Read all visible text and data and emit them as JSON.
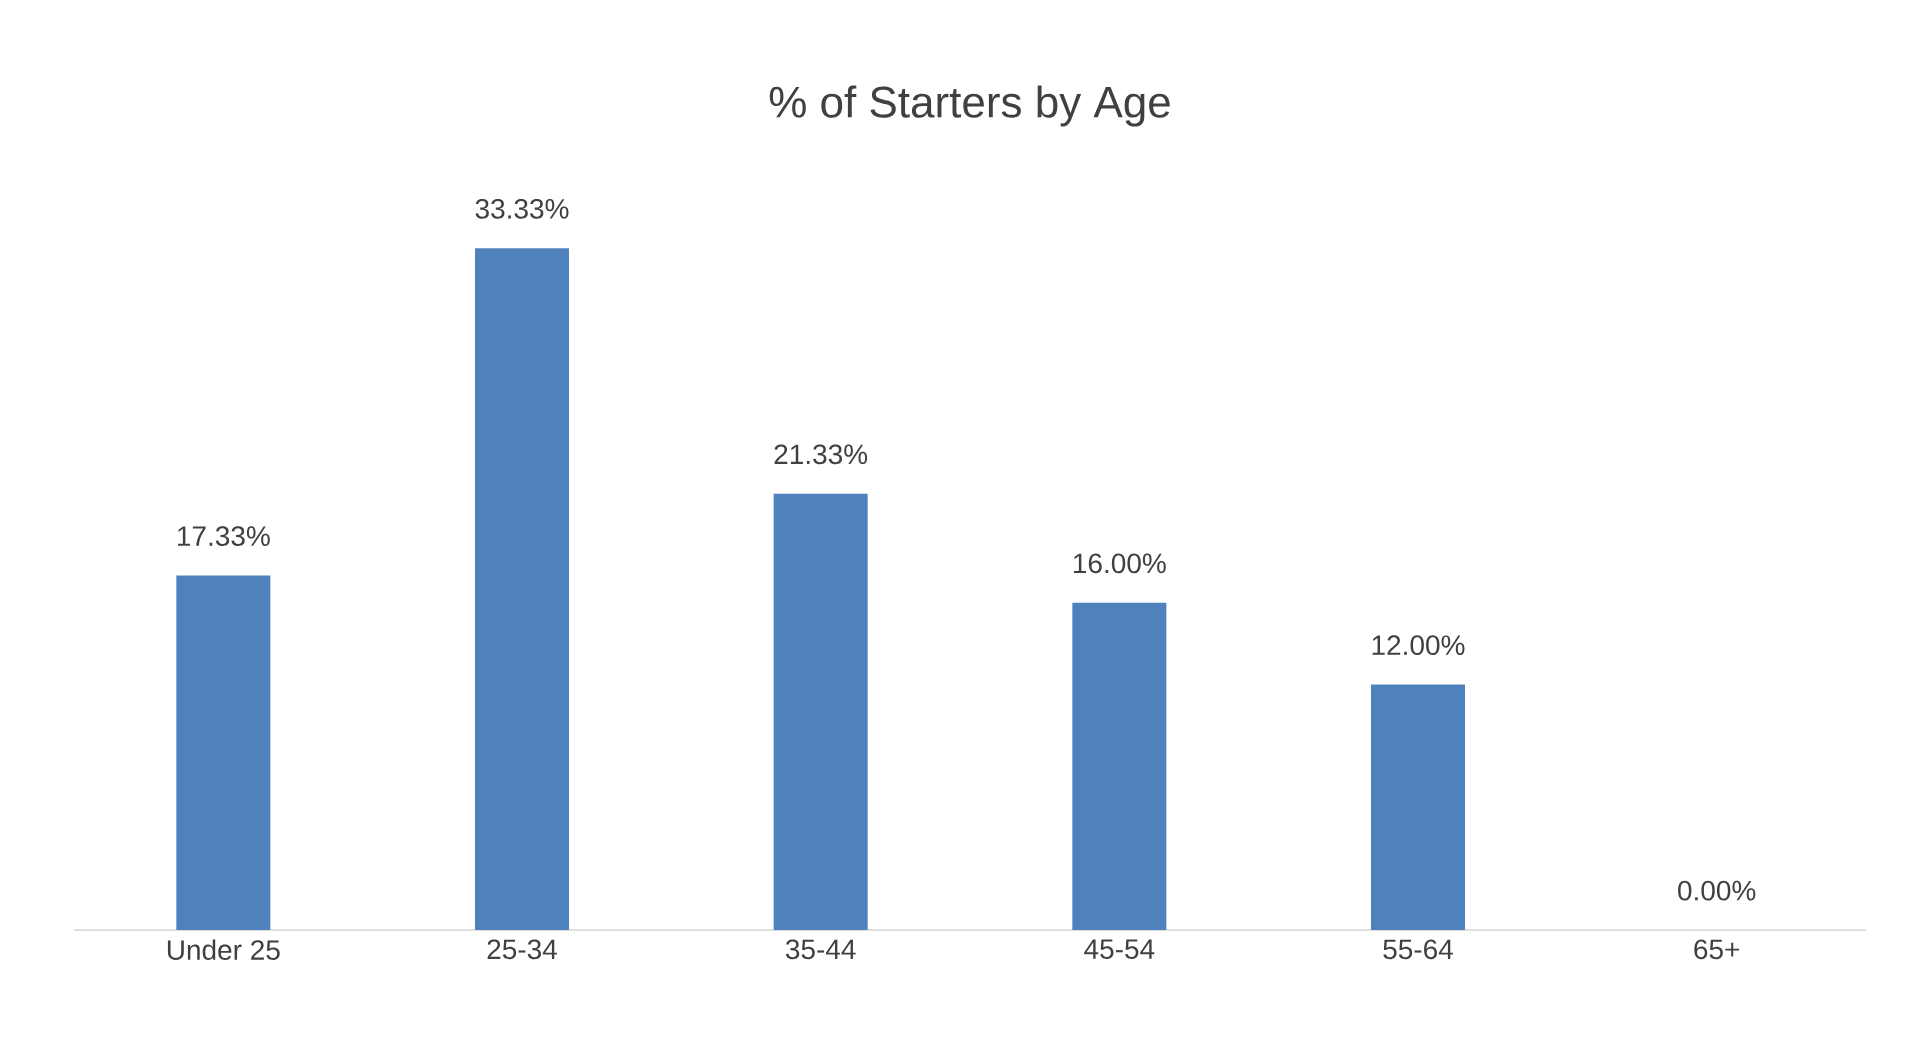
{
  "chart_data": {
    "type": "bar",
    "title": "% of Starters by Age",
    "categories": [
      "Under 25",
      "25-34",
      "35-44",
      "45-54",
      "55-64",
      "65+"
    ],
    "values": [
      17.33,
      33.33,
      21.33,
      16.0,
      12.0,
      0.0
    ],
    "value_labels": [
      "17.33%",
      "33.33%",
      "21.33%",
      "16.00%",
      "12.00%",
      "0.00%"
    ],
    "color": "#4f81bd"
  }
}
